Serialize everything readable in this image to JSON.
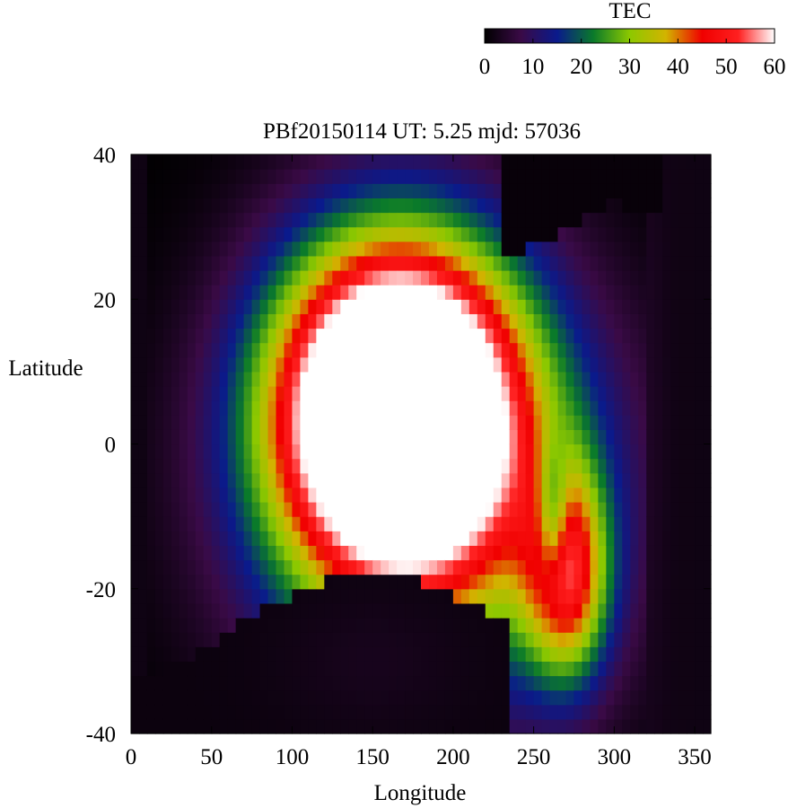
{
  "chart_data": {
    "type": "heatmap",
    "title": "PBf20150114  UT: 5.25  mjd: 57036",
    "xlabel": "Longitude",
    "ylabel": "Latitude",
    "xlim": [
      0,
      360
    ],
    "ylim": [
      -40,
      40
    ],
    "x_ticks": [
      "0",
      "50",
      "100",
      "150",
      "200",
      "250",
      "300",
      "350"
    ],
    "y_ticks": [
      "40",
      "20",
      "0",
      "-20",
      "-40"
    ],
    "colorbar": {
      "label": "TEC",
      "range": [
        0,
        60
      ],
      "ticks": [
        "0",
        "10",
        "20",
        "30",
        "40",
        "50",
        "60"
      ],
      "colors": [
        "#000000",
        "#3a0a46",
        "#0a1a8c",
        "#0a7a2a",
        "#8cc800",
        "#d2b400",
        "#f00000",
        "#ff2020",
        "#ffffff"
      ]
    },
    "summary": "TEC maximum (>60) centred near longitude 160, latitude 5, bounded by a red ring; a secondary loop near longitude 250-280, latitude -5 to -25; values fall to ~0 outside the daylit band (north of the curved boundary at right and south of ~-25 latitude)."
  }
}
